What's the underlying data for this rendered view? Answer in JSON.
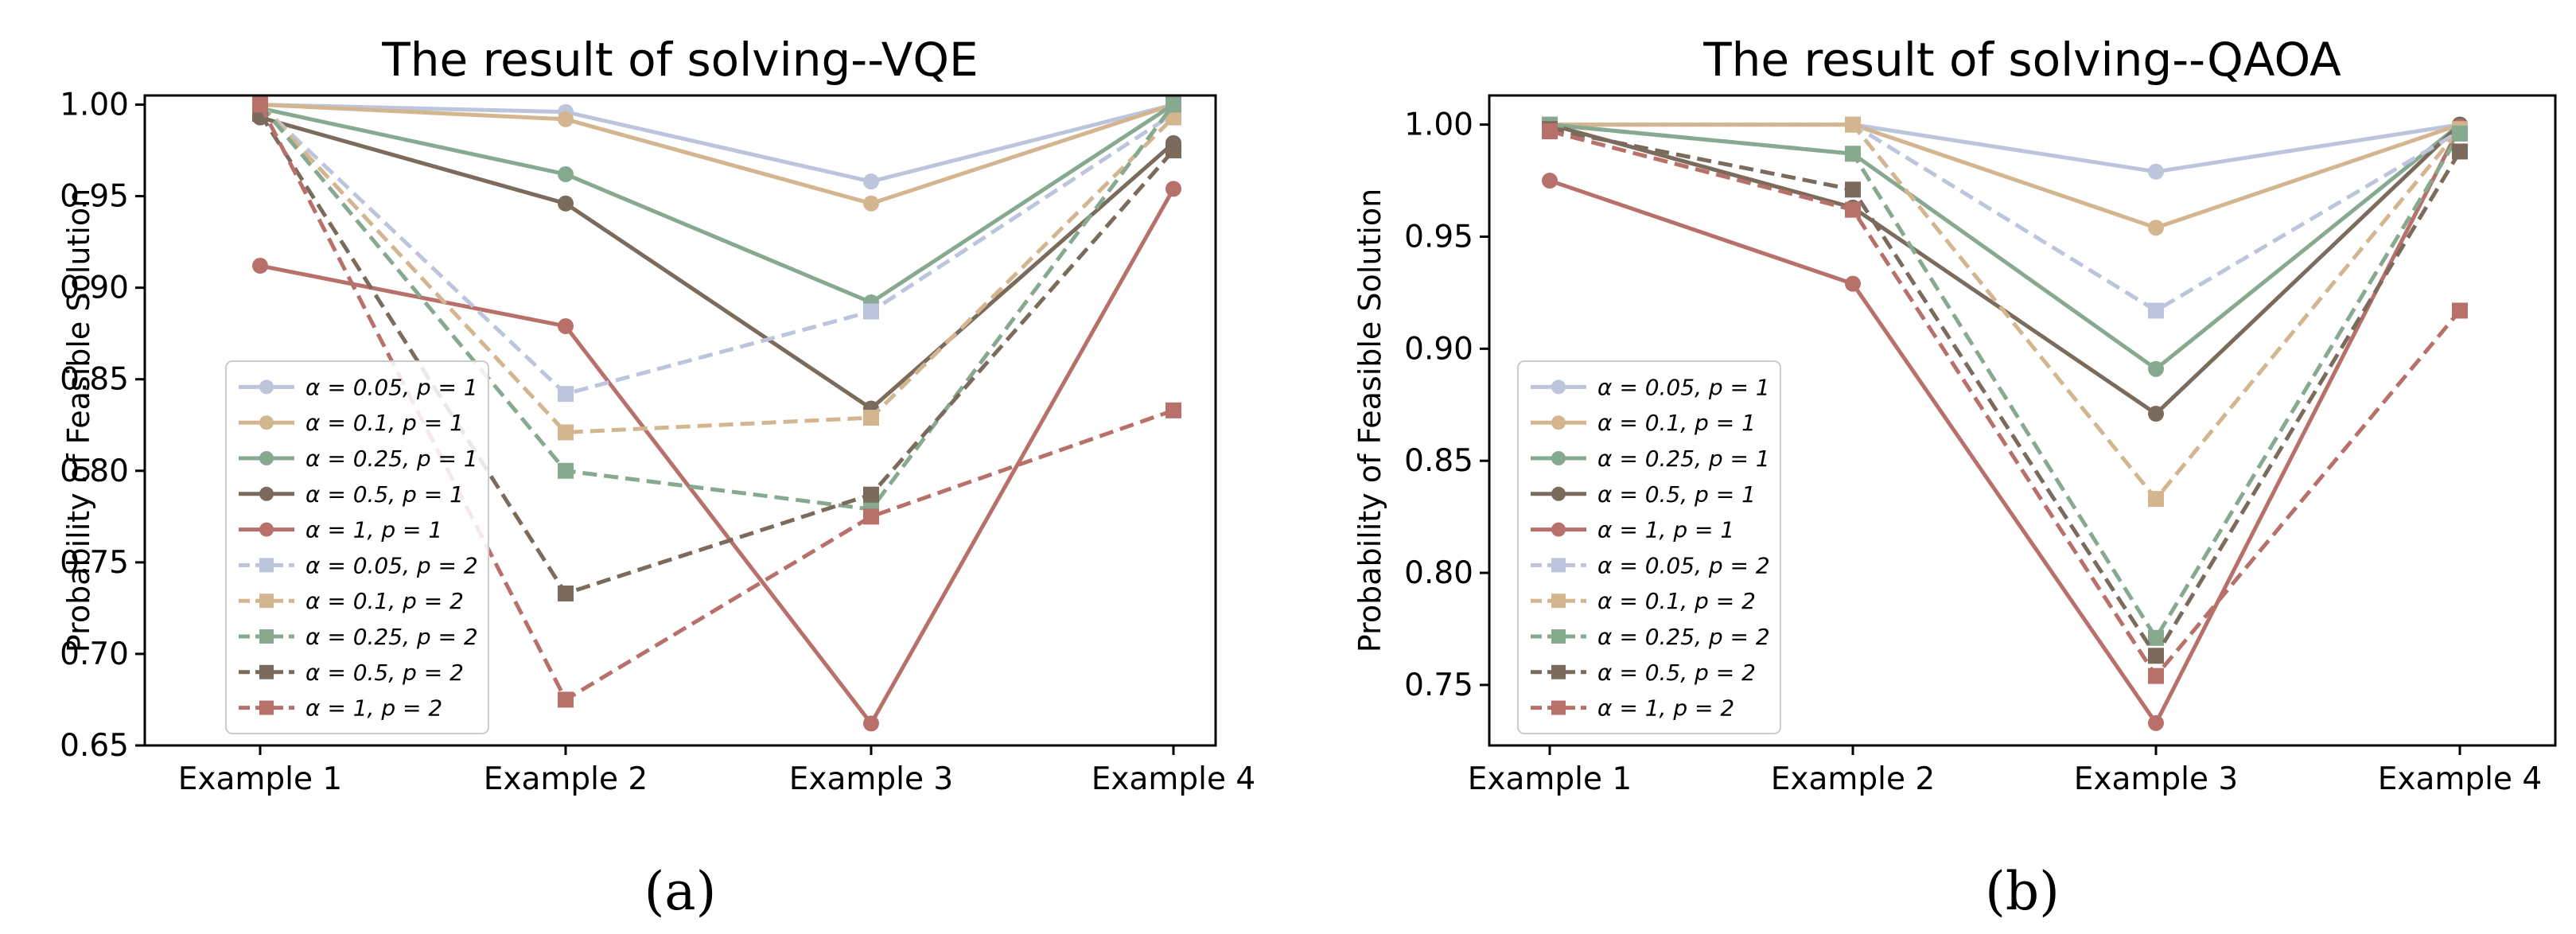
{
  "chart_data": [
    {
      "type": "line",
      "title": "The result of solving--VQE",
      "panel_label": "(a)",
      "xlabel": "",
      "ylabel": "Probability of Feasible Solution",
      "categories": [
        "Example 1",
        "Example 2",
        "Example 3",
        "Example 4"
      ],
      "ylim": [
        0.65,
        1.005
      ],
      "yticks": [
        0.65,
        0.7,
        0.75,
        0.8,
        0.85,
        0.9,
        0.95,
        1.0
      ],
      "ytick_labels": [
        "0.65",
        "0.70",
        "0.75",
        "0.80",
        "0.85",
        "0.90",
        "0.95",
        "1.00"
      ],
      "legend_position": "center-left",
      "series": [
        {
          "name": "α = 0.05, p = 1",
          "color": "#bcc5dc",
          "marker": "circle",
          "dash": "solid",
          "values": [
            1.0,
            0.996,
            0.958,
            1.0
          ]
        },
        {
          "name": "α = 0.1, p = 1",
          "color": "#d3b690",
          "marker": "circle",
          "dash": "solid",
          "values": [
            1.0,
            0.992,
            0.946,
            1.0
          ]
        },
        {
          "name": "α = 0.25, p = 1",
          "color": "#86a98f",
          "marker": "circle",
          "dash": "solid",
          "values": [
            0.998,
            0.962,
            0.892,
            1.0
          ]
        },
        {
          "name": "α = 0.5, p = 1",
          "color": "#7a6b5c",
          "marker": "circle",
          "dash": "solid",
          "values": [
            0.993,
            0.946,
            0.834,
            0.979
          ]
        },
        {
          "name": "α = 1, p = 1",
          "color": "#b8706a",
          "marker": "circle",
          "dash": "solid",
          "values": [
            0.912,
            0.879,
            0.662,
            0.954
          ]
        },
        {
          "name": "α = 0.05, p = 2",
          "color": "#bcc5dc",
          "marker": "square",
          "dash": "dashed",
          "values": [
            1.0,
            0.842,
            0.887,
            0.995
          ]
        },
        {
          "name": "α = 0.1, p = 2",
          "color": "#d3b690",
          "marker": "square",
          "dash": "dashed",
          "values": [
            1.0,
            0.821,
            0.829,
            0.993
          ]
        },
        {
          "name": "α = 0.25, p = 2",
          "color": "#86a98f",
          "marker": "square",
          "dash": "dashed",
          "values": [
            1.0,
            0.8,
            0.779,
            1.0
          ]
        },
        {
          "name": "α = 0.5, p = 2",
          "color": "#7a6b5c",
          "marker": "square",
          "dash": "dashed",
          "values": [
            0.995,
            0.733,
            0.787,
            0.975
          ]
        },
        {
          "name": "α = 1, p = 2",
          "color": "#b8706a",
          "marker": "square",
          "dash": "dashed",
          "values": [
            1.0,
            0.675,
            0.775,
            0.833
          ]
        }
      ]
    },
    {
      "type": "line",
      "title": "The result of solving--QAOA",
      "panel_label": "(b)",
      "xlabel": "",
      "ylabel": "Probability of Feasible Solution",
      "categories": [
        "Example 1",
        "Example 2",
        "Example 3",
        "Example 4"
      ],
      "ylim": [
        0.723,
        1.013
      ],
      "yticks": [
        0.75,
        0.8,
        0.85,
        0.9,
        0.95,
        1.0
      ],
      "ytick_labels": [
        "0.75",
        "0.80",
        "0.85",
        "0.90",
        "0.95",
        "1.00"
      ],
      "legend_position": "lower-left",
      "series": [
        {
          "name": "α = 0.05, p = 1",
          "color": "#bcc5dc",
          "marker": "circle",
          "dash": "solid",
          "values": [
            1.0,
            1.0,
            0.979,
            1.0
          ]
        },
        {
          "name": "α = 0.1, p = 1",
          "color": "#d3b690",
          "marker": "circle",
          "dash": "solid",
          "values": [
            1.0,
            1.0,
            0.954,
            1.0
          ]
        },
        {
          "name": "α = 0.25, p = 1",
          "color": "#86a98f",
          "marker": "circle",
          "dash": "solid",
          "values": [
            1.0,
            0.987,
            0.891,
            1.0
          ]
        },
        {
          "name": "α = 0.5, p = 1",
          "color": "#7a6b5c",
          "marker": "circle",
          "dash": "solid",
          "values": [
            1.0,
            0.963,
            0.871,
            1.0
          ]
        },
        {
          "name": "α = 1, p = 1",
          "color": "#b8706a",
          "marker": "circle",
          "dash": "solid",
          "values": [
            0.975,
            0.929,
            0.733,
            0.999
          ]
        },
        {
          "name": "α = 0.05, p = 2",
          "color": "#bcc5dc",
          "marker": "square",
          "dash": "dashed",
          "values": [
            1.0,
            1.0,
            0.917,
            0.997
          ]
        },
        {
          "name": "α = 0.1, p = 2",
          "color": "#d3b690",
          "marker": "square",
          "dash": "dashed",
          "values": [
            1.0,
            1.0,
            0.833,
            0.998
          ]
        },
        {
          "name": "α = 0.25, p = 2",
          "color": "#86a98f",
          "marker": "square",
          "dash": "dashed",
          "values": [
            1.0,
            0.987,
            0.771,
            0.996
          ]
        },
        {
          "name": "α = 0.5, p = 2",
          "color": "#7a6b5c",
          "marker": "square",
          "dash": "dashed",
          "values": [
            0.998,
            0.971,
            0.763,
            0.988
          ]
        },
        {
          "name": "α = 1, p = 2",
          "color": "#b8706a",
          "marker": "square",
          "dash": "dashed",
          "values": [
            0.997,
            0.962,
            0.754,
            0.917
          ]
        }
      ]
    }
  ]
}
